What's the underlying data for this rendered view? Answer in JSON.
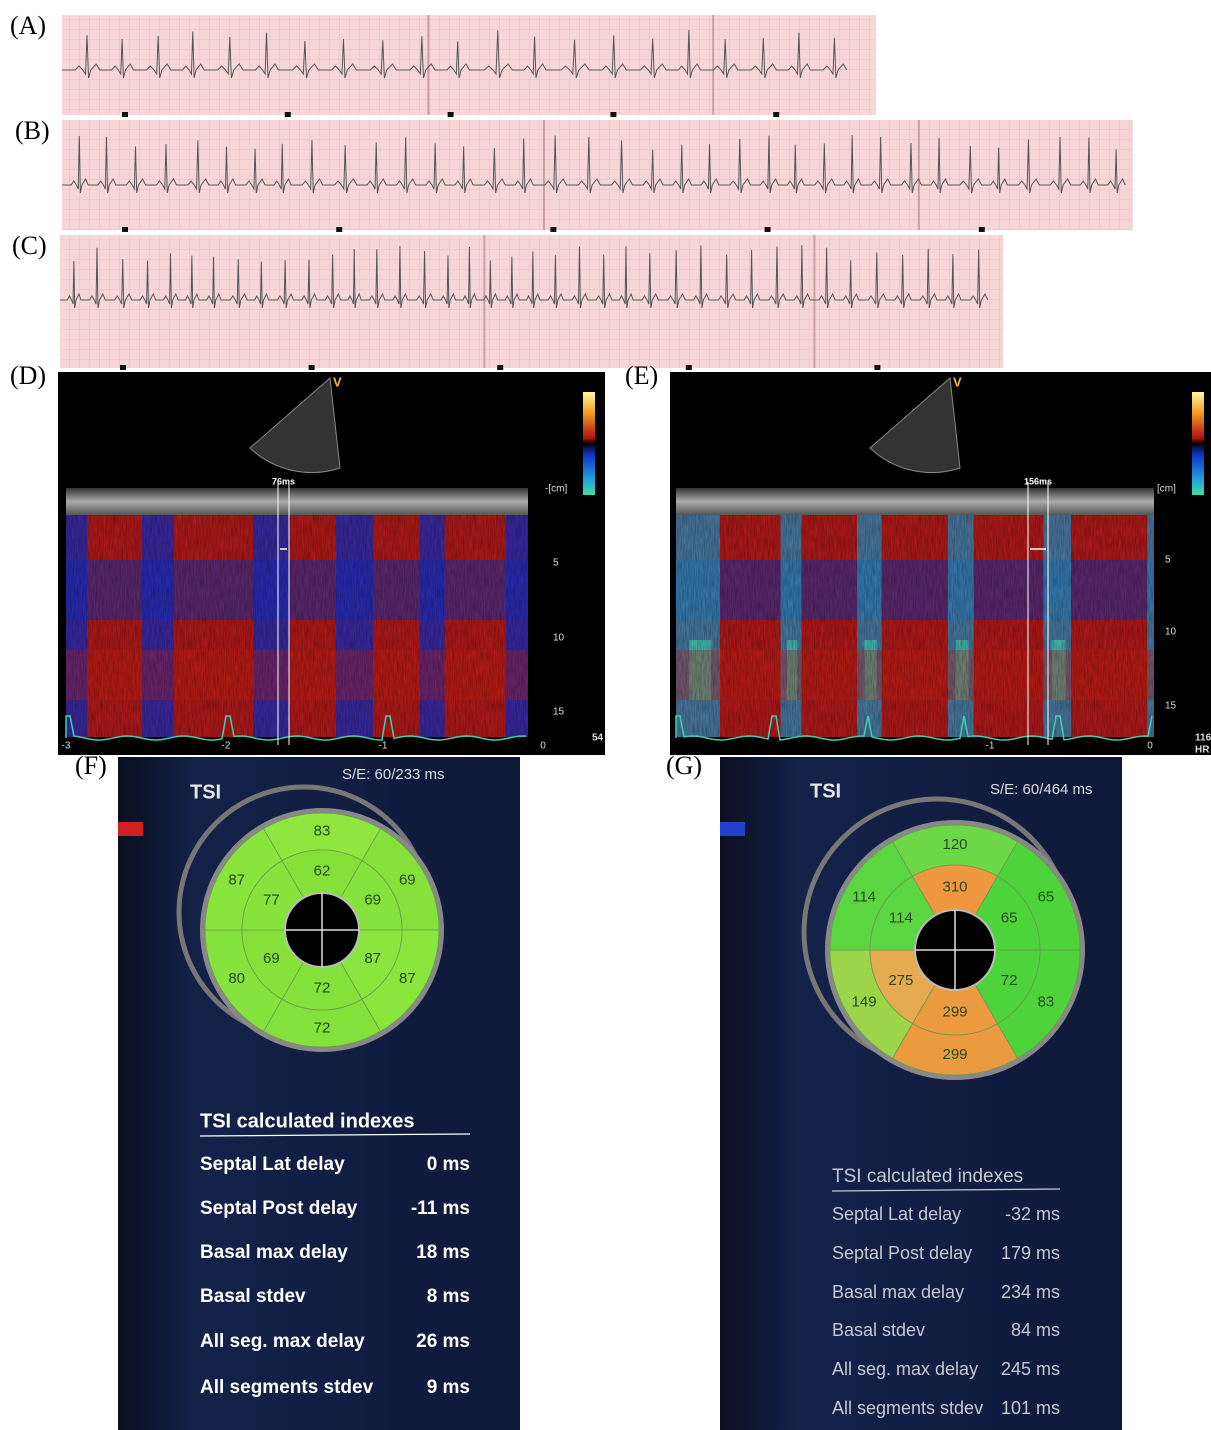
{
  "ecg_panels": [
    {
      "label": "(A)"
    },
    {
      "label": "(B)"
    },
    {
      "label": "(C)"
    }
  ],
  "echo_panels": [
    {
      "label": "(D)",
      "probe": "V",
      "measurement": "76ms",
      "depth_unit": "-[cm]",
      "depth_ticks": [
        "5",
        "10",
        "15"
      ],
      "time_ticks": [
        "-3",
        "-2",
        "-1",
        "0"
      ],
      "heart_rate": "54"
    },
    {
      "label": "(E)",
      "probe": "V",
      "measurement": "156ms",
      "depth_unit": "[cm]",
      "depth_ticks": [
        "5",
        "10",
        "15"
      ],
      "time_ticks": [
        "-1",
        "0"
      ],
      "heart_rate": "116",
      "heart_rate_unit": "HR"
    }
  ],
  "tsi_panels": [
    {
      "label": "(F)",
      "title": "TSI",
      "se": "S/E: 60/233 ms",
      "outer_segments": [
        {
          "value": 83,
          "color": "#8ee63e"
        },
        {
          "value": 69,
          "color": "#86e23a"
        },
        {
          "value": 87,
          "color": "#8ae63c"
        },
        {
          "value": 72,
          "color": "#84e03a"
        },
        {
          "value": 80,
          "color": "#86e23c"
        },
        {
          "value": 87,
          "color": "#8ae43e"
        }
      ],
      "inner_segments": [
        {
          "value": 62,
          "color": "#86e03a"
        },
        {
          "value": 69,
          "color": "#86e23c"
        },
        {
          "value": 87,
          "color": "#8ae63e"
        },
        {
          "value": 72,
          "color": "#84e03a"
        },
        {
          "value": 69,
          "color": "#86e23a"
        },
        {
          "value": 77,
          "color": "#88e23c"
        }
      ],
      "table_title": "TSI calculated indexes",
      "rows": [
        {
          "name": "Septal Lat delay",
          "value": "0 ms"
        },
        {
          "name": "Septal Post delay",
          "value": "-11 ms"
        },
        {
          "name": "Basal max delay",
          "value": "18 ms"
        },
        {
          "name": "Basal stdev",
          "value": "8 ms"
        },
        {
          "name": "All seg. max delay",
          "value": "26 ms"
        },
        {
          "name": "All segments stdev",
          "value": "9 ms"
        }
      ]
    },
    {
      "label": "(G)",
      "title": "TSI",
      "se": "S/E: 60/464 ms",
      "outer_segments": [
        {
          "value": 120,
          "color": "#6cd846"
        },
        {
          "value": 65,
          "color": "#4cd43a"
        },
        {
          "value": 83,
          "color": "#4cd43a"
        },
        {
          "value": 299,
          "color": "#ec9a40"
        },
        {
          "value": 149,
          "color": "#9cd44a"
        },
        {
          "value": 114,
          "color": "#5cd640"
        }
      ],
      "inner_segments": [
        {
          "value": 310,
          "color": "#ee9640"
        },
        {
          "value": 65,
          "color": "#4cd43a"
        },
        {
          "value": 72,
          "color": "#4cd43a"
        },
        {
          "value": 299,
          "color": "#ec9a40"
        },
        {
          "value": 275,
          "color": "#e6aa50"
        },
        {
          "value": 114,
          "color": "#5cd640"
        }
      ],
      "table_title": "TSI calculated indexes",
      "rows": [
        {
          "name": "Septal Lat delay",
          "value": "-32 ms"
        },
        {
          "name": "Septal Post delay",
          "value": "179 ms"
        },
        {
          "name": "Basal max delay",
          "value": "234 ms"
        },
        {
          "name": "Basal stdev",
          "value": "84 ms"
        },
        {
          "name": "All seg. max delay",
          "value": "245 ms"
        },
        {
          "name": "All segments stdev",
          "value": "101 ms"
        }
      ]
    }
  ]
}
